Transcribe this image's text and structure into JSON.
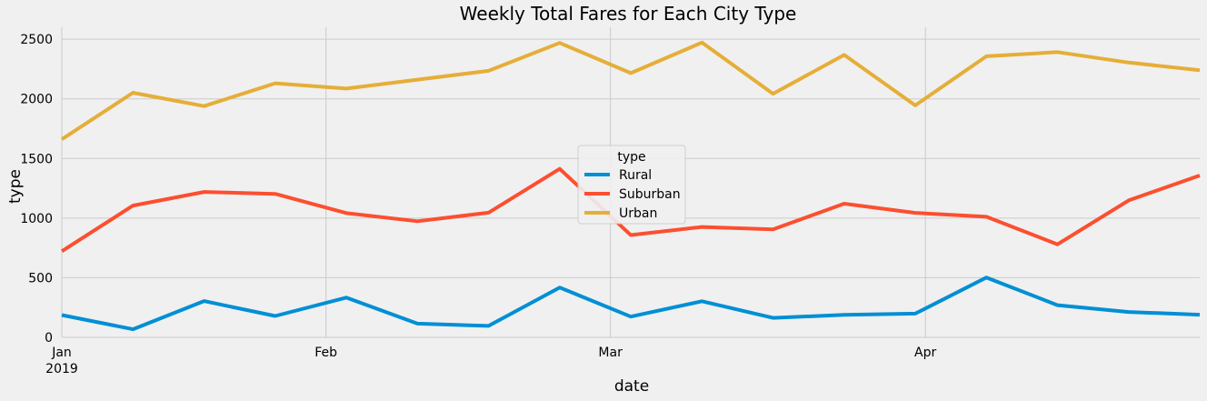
{
  "chart_data": {
    "type": "line",
    "title": "Weekly Total Fares for Each City Type",
    "xlabel": "date",
    "ylabel": "type",
    "legend_title": "type",
    "legend_placement": "center",
    "grid": true,
    "ylim": [
      0,
      2600
    ],
    "yticks": [
      0,
      500,
      1000,
      1500,
      2000,
      2500
    ],
    "xlim": [
      "2019-01-06",
      "2019-04-28"
    ],
    "x": [
      "2019-01-06",
      "2019-01-13",
      "2019-01-20",
      "2019-01-27",
      "2019-02-03",
      "2019-02-10",
      "2019-02-17",
      "2019-02-24",
      "2019-03-03",
      "2019-03-10",
      "2019-03-17",
      "2019-03-24",
      "2019-03-31",
      "2019-04-07",
      "2019-04-14",
      "2019-04-21",
      "2019-04-28"
    ],
    "xticks": [
      {
        "date": "2019-01-01",
        "label": "Jan",
        "sublabel": "2019"
      },
      {
        "date": "2019-02-01",
        "label": "Feb",
        "sublabel": ""
      },
      {
        "date": "2019-03-01",
        "label": "Mar",
        "sublabel": ""
      },
      {
        "date": "2019-04-01",
        "label": "Apr",
        "sublabel": ""
      }
    ],
    "series": [
      {
        "name": "Rural",
        "color": "#008fd5",
        "values": [
          187,
          68,
          304,
          179,
          333,
          115,
          96,
          418,
          174,
          303,
          163,
          188,
          199,
          502,
          270,
          213,
          190
        ]
      },
      {
        "name": "Suburban",
        "color": "#fc4f30",
        "values": [
          722,
          1105,
          1219,
          1203,
          1042,
          974,
          1045,
          1413,
          858,
          926,
          905,
          1121,
          1044,
          1011,
          780,
          1148,
          1357
        ]
      },
      {
        "name": "Urban",
        "color": "#e5ae38",
        "values": [
          1661,
          2051,
          1939,
          2130,
          2086,
          2161,
          2235,
          2469,
          2216,
          2472,
          2043,
          2368,
          1945,
          2357,
          2392,
          2304,
          2240
        ]
      }
    ]
  }
}
